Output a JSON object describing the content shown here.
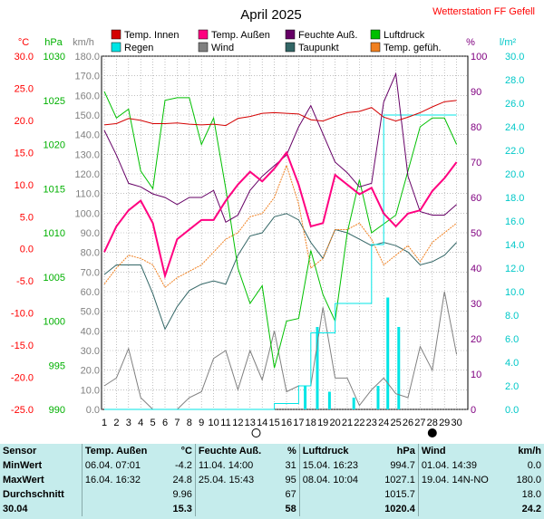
{
  "header": {
    "title": "April 2025",
    "station": "Wetterstation FF Gefell"
  },
  "colors": {
    "temp_innen": "#d40000",
    "temp_aussen": "#ff0080",
    "feuchte": "#660066",
    "luftdruck": "#00c000",
    "regen": "#00e5e5",
    "wind": "#808080",
    "taupunkt": "#336666",
    "temp_gefuehlt": "#f08020",
    "axis_celsius": "#ff0000",
    "axis_hpa": "#00b000",
    "axis_kmh": "#808080",
    "axis_percent": "#800080",
    "axis_rain": "#00c8c8",
    "station": "#ff0000"
  },
  "axes_units": {
    "celsius": "°C",
    "hpa": "hPa",
    "kmh": "km/h",
    "percent": "%",
    "rain": "l/m²"
  },
  "chart_data": {
    "type": "line",
    "x": [
      1,
      2,
      3,
      4,
      5,
      6,
      7,
      8,
      9,
      10,
      11,
      12,
      13,
      14,
      15,
      16,
      17,
      18,
      19,
      20,
      21,
      22,
      23,
      24,
      25,
      26,
      27,
      28,
      29,
      30
    ],
    "axes": {
      "celsius": {
        "range": [
          -25.0,
          30.0
        ],
        "ticks": [
          "30.0",
          "25.0",
          "20.0",
          "15.0",
          "10.0",
          "5.0",
          "0.0",
          "-5.0",
          "-10.0",
          "-15.0",
          "-20.0",
          "-25.0"
        ]
      },
      "hpa": {
        "range": [
          990,
          1030
        ],
        "ticks": [
          "1030",
          "1025",
          "1020",
          "1015",
          "1010",
          "1005",
          "1000",
          "995",
          "990"
        ]
      },
      "kmh": {
        "range": [
          0,
          180
        ],
        "ticks": [
          "180.0",
          "170.0",
          "160.0",
          "150.0",
          "140.0",
          "130.0",
          "120.0",
          "110.0",
          "100.0",
          "90.0",
          "80.0",
          "70.0",
          "60.0",
          "50.0",
          "40.0",
          "30.0",
          "20.0",
          "10.0",
          "0.0"
        ]
      },
      "percent": {
        "range": [
          0,
          100
        ],
        "ticks": [
          "100",
          "90",
          "80",
          "70",
          "60",
          "50",
          "40",
          "30",
          "20",
          "10",
          "0"
        ]
      },
      "rain": {
        "range": [
          0,
          30
        ],
        "ticks": [
          "30.0",
          "28.0",
          "26.0",
          "24.0",
          "22.0",
          "20.0",
          "18.0",
          "16.0",
          "14.0",
          "12.0",
          "10.0",
          "8.0",
          "6.0",
          "4.0",
          "2.0",
          "0.0"
        ]
      }
    },
    "grid": true,
    "series": [
      {
        "key": "temp_innen",
        "name": "Temp. Innen",
        "axis": "celsius",
        "width": 1,
        "values": [
          19.3,
          19.5,
          20.3,
          20.0,
          19.5,
          19.5,
          19.6,
          19.4,
          19.3,
          19.4,
          19.2,
          20.3,
          20.6,
          21.1,
          21.2,
          21.1,
          21.0,
          20.1,
          19.9,
          20.6,
          21.2,
          21.4,
          22.0,
          20.5,
          19.9,
          20.5,
          21.2,
          22.1,
          22.9,
          23.1
        ]
      },
      {
        "key": "temp_aussen",
        "name": "Temp. Außen",
        "axis": "celsius",
        "width": 2,
        "values": [
          -0.5,
          3.5,
          6.0,
          7.5,
          4.0,
          -4.2,
          1.5,
          3.0,
          4.5,
          4.5,
          7.5,
          10.0,
          12.0,
          10.5,
          12.5,
          15.0,
          10.0,
          3.5,
          4.0,
          11.5,
          10.0,
          8.5,
          9.5,
          5.5,
          3.5,
          5.5,
          6.0,
          9.0,
          11.0,
          13.5
        ]
      },
      {
        "key": "feuchte",
        "name": "Feuchte Auß.",
        "axis": "percent",
        "width": 1,
        "values": [
          79,
          72,
          64,
          63,
          61,
          60,
          58,
          60,
          60,
          62,
          53,
          55,
          62,
          66,
          69,
          72,
          80,
          86,
          78,
          70,
          67,
          63,
          64,
          87,
          95,
          66,
          56,
          55,
          55,
          58
        ]
      },
      {
        "key": "luftdruck",
        "name": "Luftdruck",
        "axis": "hpa",
        "width": 1,
        "values": [
          1026.0,
          1023.0,
          1024.0,
          1017.0,
          1015.0,
          1025.0,
          1025.3,
          1025.3,
          1020.0,
          1023.0,
          1015.0,
          1006.0,
          1002.0,
          1004.0,
          994.7,
          1000.0,
          1000.3,
          1008.0,
          1003.0,
          1000.0,
          1010.0,
          1016.0,
          1010.0,
          1011.0,
          1012.0,
          1017.0,
          1022.0,
          1023.0,
          1023.0,
          1020.0
        ]
      },
      {
        "key": "taupunkt",
        "name": "Taupunkt",
        "axis": "celsius",
        "width": 1,
        "values": [
          -4.0,
          -2.5,
          -2.5,
          -2.5,
          -7.0,
          -12.5,
          -9.0,
          -6.5,
          -5.5,
          -5.0,
          -5.5,
          -1.0,
          2.0,
          2.5,
          5.0,
          5.5,
          4.5,
          1.0,
          -1.5,
          3.0,
          2.5,
          1.5,
          0.5,
          1.0,
          0.5,
          -0.5,
          -2.5,
          -2.0,
          -1.0,
          1.0
        ]
      },
      {
        "key": "temp_gefuehlt",
        "name": "Temp. gefüh.",
        "axis": "celsius",
        "width": 1,
        "values": [
          -5.5,
          -3.0,
          -1.0,
          -1.5,
          -2.5,
          -6.0,
          -4.5,
          -3.5,
          -2.5,
          -0.5,
          1.5,
          2.5,
          5.0,
          5.5,
          8.0,
          13.0,
          7.0,
          -3.0,
          -1.5,
          3.0,
          3.0,
          4.0,
          1.5,
          -2.5,
          -1.0,
          0.5,
          -2.0,
          1.0,
          2.5,
          4.0
        ]
      },
      {
        "key": "wind",
        "name": "Wind",
        "axis": "kmh",
        "width": 1,
        "values": [
          12,
          16,
          31,
          6,
          0,
          0,
          0,
          6,
          9,
          26,
          30,
          10,
          30,
          15,
          40,
          9,
          12,
          12,
          52,
          16,
          16,
          2,
          10,
          16,
          8,
          6,
          32,
          20,
          60,
          28
        ]
      },
      {
        "key": "regen",
        "name": "Regen",
        "axis": "rain",
        "width": 1,
        "values": [
          0,
          0,
          0,
          0,
          0,
          0,
          0,
          0,
          0,
          0,
          0,
          0,
          0,
          0,
          0.5,
          0.5,
          2.0,
          6.5,
          6.5,
          9.0,
          9.0,
          9.0,
          14.0,
          25.0,
          25.0,
          25.0,
          25.0,
          25.0,
          25.0,
          25.0
        ]
      }
    ],
    "rain_bars": [
      {
        "x": 17.5,
        "v": 2
      },
      {
        "x": 18.5,
        "v": 7
      },
      {
        "x": 19.5,
        "v": 1.5
      },
      {
        "x": 21.5,
        "v": 1
      },
      {
        "x": 23.5,
        "v": 2
      },
      {
        "x": 24.3,
        "v": 9.5
      },
      {
        "x": 25.2,
        "v": 7
      }
    ],
    "moon_markers": [
      {
        "x": 13.5,
        "phase": "full"
      },
      {
        "x": 28.0,
        "phase": "new"
      }
    ]
  },
  "stats": {
    "headers": {
      "sensor": "Sensor",
      "temp": "Temp. Außen",
      "temp_unit": "°C",
      "feuchte": "Feuchte Auß.",
      "feuchte_unit": "%",
      "luftdruck": "Luftdruck",
      "luftdruck_unit": "hPa",
      "wind": "Wind",
      "wind_unit": "km/h"
    },
    "rows": [
      {
        "label": "MinWert",
        "temp_time": "06.04.  07:01",
        "temp_val": "-4.2",
        "feuchte_time": "11.04.  14:00",
        "feuchte_val": "31",
        "druck_time": "15.04.  16:23",
        "druck_val": "994.7",
        "wind_time": "01.04.  14:39",
        "wind_val": "0.0"
      },
      {
        "label": "MaxWert",
        "temp_time": "16.04.  16:32",
        "temp_val": "24.8",
        "feuchte_time": "25.04.  15:43",
        "feuchte_val": "95",
        "druck_time": "08.04.  10:04",
        "druck_val": "1027.1",
        "wind_time": "19.04.  14N-NO",
        "wind_val": "180.0"
      },
      {
        "label": "Durchschnitt",
        "temp_time": "",
        "temp_val": "9.96",
        "feuchte_time": "",
        "feuchte_val": "67",
        "druck_time": "",
        "druck_val": "1015.7",
        "wind_time": "",
        "wind_val": "18.0"
      },
      {
        "label": "30.04",
        "temp_time": "",
        "temp_val": "15.3",
        "feuchte_time": "",
        "feuchte_val": "58",
        "druck_time": "",
        "druck_val": "1020.4",
        "wind_time": "",
        "wind_val": "24.2"
      }
    ]
  }
}
